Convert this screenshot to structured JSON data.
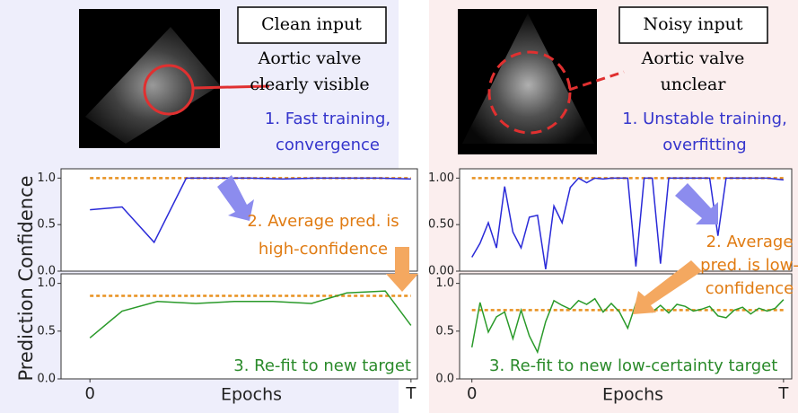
{
  "ylabel": "Prediction Confidence",
  "panels": [
    {
      "input_label": "Clean input",
      "valve_note": [
        "Aortic valve",
        "clearly visible"
      ],
      "step1": [
        "1. Fast training,",
        "convergence"
      ],
      "step2": [
        "2. Average pred. is",
        "high-confidence"
      ],
      "step3": [
        "3. Re-fit to new target"
      ],
      "xlabel": "Epochs"
    },
    {
      "input_label": "Noisy input",
      "valve_note": [
        "Aortic valve",
        "unclear"
      ],
      "step1": [
        "1. Unstable training,",
        "overfitting"
      ],
      "step2": [
        "2. Average",
        "pred. is low-",
        "confidence"
      ],
      "step3": [
        "3. Re-fit to new low-certainty target"
      ],
      "xlabel": "Epochs"
    }
  ],
  "chart_data": [
    {
      "type": "line",
      "xlim": [
        -0.9,
        10.2
      ],
      "ylim": [
        0,
        1.1
      ],
      "yticks": [
        {
          "value": 0,
          "label": "0.0"
        },
        {
          "value": 0.5,
          "label": "0.5"
        },
        {
          "value": 1,
          "label": "1.0"
        }
      ],
      "series": [
        {
          "color": "#e8901e",
          "dashed": true,
          "x": [
            0,
            10
          ],
          "values": [
            1.0,
            1.0
          ]
        },
        {
          "color": "#2a2ad8",
          "dashed": false,
          "x": [
            0,
            1,
            2,
            3,
            4,
            5,
            6,
            7,
            8,
            9,
            10
          ],
          "values": [
            0.66,
            0.69,
            0.31,
            1.0,
            1.0,
            1.0,
            0.99,
            1.0,
            1.0,
            1.0,
            0.99
          ]
        }
      ]
    },
    {
      "type": "line",
      "xlim": [
        -0.9,
        10.2
      ],
      "ylim": [
        0,
        1.1
      ],
      "yticks": [
        {
          "value": 0,
          "label": "0.0"
        },
        {
          "value": 0.5,
          "label": "0.5"
        },
        {
          "value": 1,
          "label": "1.0"
        }
      ],
      "xticks": [
        0,
        {
          "value": 10,
          "label": "T"
        }
      ],
      "series": [
        {
          "color": "#e8901e",
          "dashed": true,
          "x": [
            0,
            10
          ],
          "values": [
            0.87,
            0.87
          ]
        },
        {
          "color": "#2a9a2a",
          "dashed": false,
          "x": [
            0,
            1,
            2.1,
            3.3,
            4.5,
            5.7,
            6.9,
            8,
            9.2,
            10
          ],
          "values": [
            0.43,
            0.71,
            0.81,
            0.79,
            0.81,
            0.81,
            0.79,
            0.9,
            0.92,
            0.56
          ]
        }
      ]
    },
    {
      "type": "line",
      "xlim": [
        -1.5,
        39
      ],
      "ylim": [
        0,
        1.1
      ],
      "yticks": [
        {
          "value": 0,
          "label": "0.00"
        },
        {
          "value": 0.5,
          "label": "0.50"
        },
        {
          "value": 1,
          "label": "1.00"
        }
      ],
      "series": [
        {
          "color": "#e8901e",
          "dashed": true,
          "x": [
            0,
            38
          ],
          "values": [
            1.0,
            1.0
          ]
        },
        {
          "color": "#2a2ad8",
          "dashed": false,
          "x": [
            0,
            1,
            2,
            3,
            4,
            5,
            6,
            7,
            8,
            9,
            10,
            11,
            12,
            13,
            14,
            15,
            16,
            17,
            18,
            19,
            20,
            21,
            22,
            23,
            24,
            25,
            26,
            27,
            28,
            29,
            30,
            31,
            32,
            33,
            34,
            35,
            36,
            38
          ],
          "values": [
            0.15,
            0.3,
            0.52,
            0.25,
            0.91,
            0.42,
            0.25,
            0.58,
            0.6,
            0.02,
            0.7,
            0.52,
            0.9,
            1.0,
            0.95,
            1.0,
            0.99,
            1.0,
            1.0,
            1.0,
            0.05,
            1.0,
            1.0,
            0.08,
            1.0,
            1.0,
            1.0,
            1.0,
            1.0,
            1.0,
            0.38,
            1.0,
            1.0,
            1.0,
            1.0,
            1.0,
            1.0,
            0.98
          ]
        }
      ]
    },
    {
      "type": "line",
      "xlim": [
        -1.5,
        39
      ],
      "ylim": [
        0,
        1.1
      ],
      "yticks": [
        {
          "value": 0,
          "label": "0.0"
        },
        {
          "value": 0.5,
          "label": "0.5"
        },
        {
          "value": 1,
          "label": "1.0"
        }
      ],
      "xticks": [
        0,
        {
          "value": 38,
          "label": "T"
        }
      ],
      "series": [
        {
          "color": "#e8901e",
          "dashed": true,
          "x": [
            0,
            38
          ],
          "values": [
            0.72,
            0.72
          ]
        },
        {
          "color": "#2a9a2a",
          "dashed": false,
          "x": [
            0,
            1,
            2,
            3,
            4,
            5,
            6,
            7,
            8,
            9,
            10,
            11,
            12,
            13,
            14,
            15,
            16,
            17,
            18,
            19,
            20,
            21,
            22,
            23,
            24,
            25,
            26,
            27,
            28,
            29,
            30,
            31,
            32,
            33,
            34,
            35,
            36,
            37,
            38
          ],
          "values": [
            0.33,
            0.8,
            0.49,
            0.65,
            0.7,
            0.42,
            0.72,
            0.45,
            0.28,
            0.6,
            0.82,
            0.77,
            0.73,
            0.82,
            0.78,
            0.84,
            0.7,
            0.79,
            0.7,
            0.53,
            0.79,
            0.72,
            0.7,
            0.77,
            0.69,
            0.78,
            0.76,
            0.71,
            0.73,
            0.76,
            0.66,
            0.64,
            0.72,
            0.75,
            0.68,
            0.74,
            0.71,
            0.74,
            0.83
          ]
        }
      ]
    }
  ]
}
